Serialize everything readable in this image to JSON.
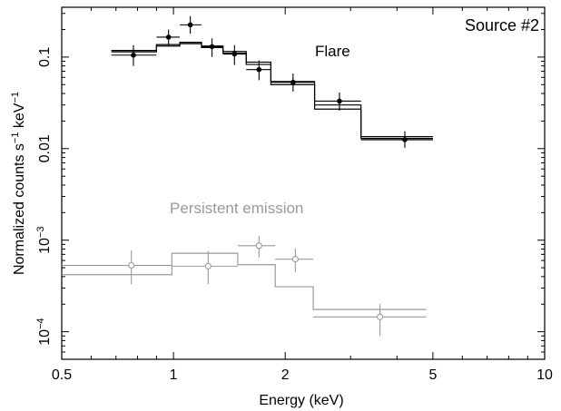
{
  "chart_data": {
    "type": "scatter",
    "x_scale": "log",
    "y_scale": "log",
    "xlabel": "Energy (keV)",
    "ylabel_parts": [
      "Normalized counts s",
      "−1",
      " keV",
      "−1"
    ],
    "xlim": [
      0.5,
      10
    ],
    "ylim": [
      5e-05,
      0.35
    ],
    "x_ticks": [
      {
        "value": 0.5,
        "label": "0.5"
      },
      {
        "value": 1,
        "label": "1"
      },
      {
        "value": 2,
        "label": "2"
      },
      {
        "value": 5,
        "label": "5"
      },
      {
        "value": 10,
        "label": "10"
      }
    ],
    "y_ticks": [
      {
        "value": 0.1,
        "label": "0.1"
      },
      {
        "value": 0.01,
        "label": "0.01"
      },
      {
        "value": 0.001,
        "base": "10",
        "exp": "−3"
      },
      {
        "value": 0.0001,
        "base": "10",
        "exp": "−4"
      }
    ],
    "corner_label": "Source #2",
    "series": [
      {
        "name": "Flare",
        "color": "#000000",
        "points": [
          {
            "x": 0.78,
            "xlo": 0.68,
            "xhi": 0.9,
            "y": 0.105,
            "ylo": 0.08,
            "yhi": 0.135
          },
          {
            "x": 0.97,
            "xlo": 0.9,
            "xhi": 1.04,
            "y": 0.165,
            "ylo": 0.135,
            "yhi": 0.2
          },
          {
            "x": 1.11,
            "xlo": 1.04,
            "xhi": 1.19,
            "y": 0.225,
            "ylo": 0.18,
            "yhi": 0.28
          },
          {
            "x": 1.27,
            "xlo": 1.19,
            "xhi": 1.36,
            "y": 0.13,
            "ylo": 0.1,
            "yhi": 0.16
          },
          {
            "x": 1.46,
            "xlo": 1.36,
            "xhi": 1.57,
            "y": 0.108,
            "ylo": 0.082,
            "yhi": 0.135
          },
          {
            "x": 1.7,
            "xlo": 1.57,
            "xhi": 1.83,
            "y": 0.073,
            "ylo": 0.056,
            "yhi": 0.092
          },
          {
            "x": 2.1,
            "xlo": 1.83,
            "xhi": 2.4,
            "y": 0.053,
            "ylo": 0.042,
            "yhi": 0.066
          },
          {
            "x": 2.8,
            "xlo": 2.4,
            "xhi": 3.2,
            "y": 0.033,
            "ylo": 0.026,
            "yhi": 0.041
          },
          {
            "x": 4.2,
            "xlo": 3.2,
            "xhi": 5.0,
            "y": 0.0125,
            "ylo": 0.0102,
            "yhi": 0.0155
          }
        ],
        "model_steps": [
          {
            "x0": 0.68,
            "x1": 0.9,
            "y": 0.114
          },
          {
            "x0": 0.9,
            "x1": 1.04,
            "y": 0.132
          },
          {
            "x0": 1.04,
            "x1": 1.19,
            "y": 0.14
          },
          {
            "x0": 1.19,
            "x1": 1.36,
            "y": 0.127
          },
          {
            "x0": 1.36,
            "x1": 1.57,
            "y": 0.11
          },
          {
            "x0": 1.57,
            "x1": 1.83,
            "y": 0.083
          },
          {
            "x0": 1.83,
            "x1": 2.4,
            "y": 0.05
          },
          {
            "x0": 2.4,
            "x1": 3.2,
            "y": 0.027
          },
          {
            "x0": 3.2,
            "x1": 5.0,
            "y": 0.0129
          }
        ],
        "model_steps_alt": [
          {
            "x0": 0.68,
            "x1": 0.9,
            "y": 0.118
          },
          {
            "x0": 0.9,
            "x1": 1.04,
            "y": 0.137
          },
          {
            "x0": 1.04,
            "x1": 1.19,
            "y": 0.145
          },
          {
            "x0": 1.19,
            "x1": 1.36,
            "y": 0.132
          },
          {
            "x0": 1.36,
            "x1": 1.57,
            "y": 0.115
          },
          {
            "x0": 1.57,
            "x1": 1.83,
            "y": 0.088
          },
          {
            "x0": 1.83,
            "x1": 2.4,
            "y": 0.054
          },
          {
            "x0": 2.4,
            "x1": 3.2,
            "y": 0.03
          },
          {
            "x0": 3.2,
            "x1": 5.0,
            "y": 0.0135
          }
        ]
      },
      {
        "name": "Persistent emission",
        "color": "#9a9a9a",
        "points": [
          {
            "x": 0.77,
            "xlo": 0.5,
            "xhi": 0.99,
            "y": 0.00053,
            "ylo": 0.00033,
            "yhi": 0.00077
          },
          {
            "x": 1.24,
            "xlo": 0.99,
            "xhi": 1.49,
            "y": 0.00052,
            "ylo": 0.00033,
            "yhi": 0.00076
          },
          {
            "x": 1.7,
            "xlo": 1.49,
            "xhi": 1.88,
            "y": 0.00087,
            "ylo": 0.00065,
            "yhi": 0.00111
          },
          {
            "x": 2.13,
            "xlo": 1.88,
            "xhi": 2.38,
            "y": 0.00062,
            "ylo": 0.00045,
            "yhi": 0.00081
          },
          {
            "x": 3.6,
            "xlo": 2.38,
            "xhi": 4.8,
            "y": 0.000145,
            "ylo": 9e-05,
            "yhi": 0.0002
          }
        ],
        "model_steps": [
          {
            "x0": 0.5,
            "x1": 0.99,
            "y": 0.00042
          },
          {
            "x0": 0.99,
            "x1": 1.49,
            "y": 0.00072
          },
          {
            "x0": 1.49,
            "x1": 1.88,
            "y": 0.00054
          },
          {
            "x0": 1.88,
            "x1": 2.38,
            "y": 0.00031
          },
          {
            "x0": 2.38,
            "x1": 4.8,
            "y": 0.000175
          }
        ]
      }
    ]
  }
}
